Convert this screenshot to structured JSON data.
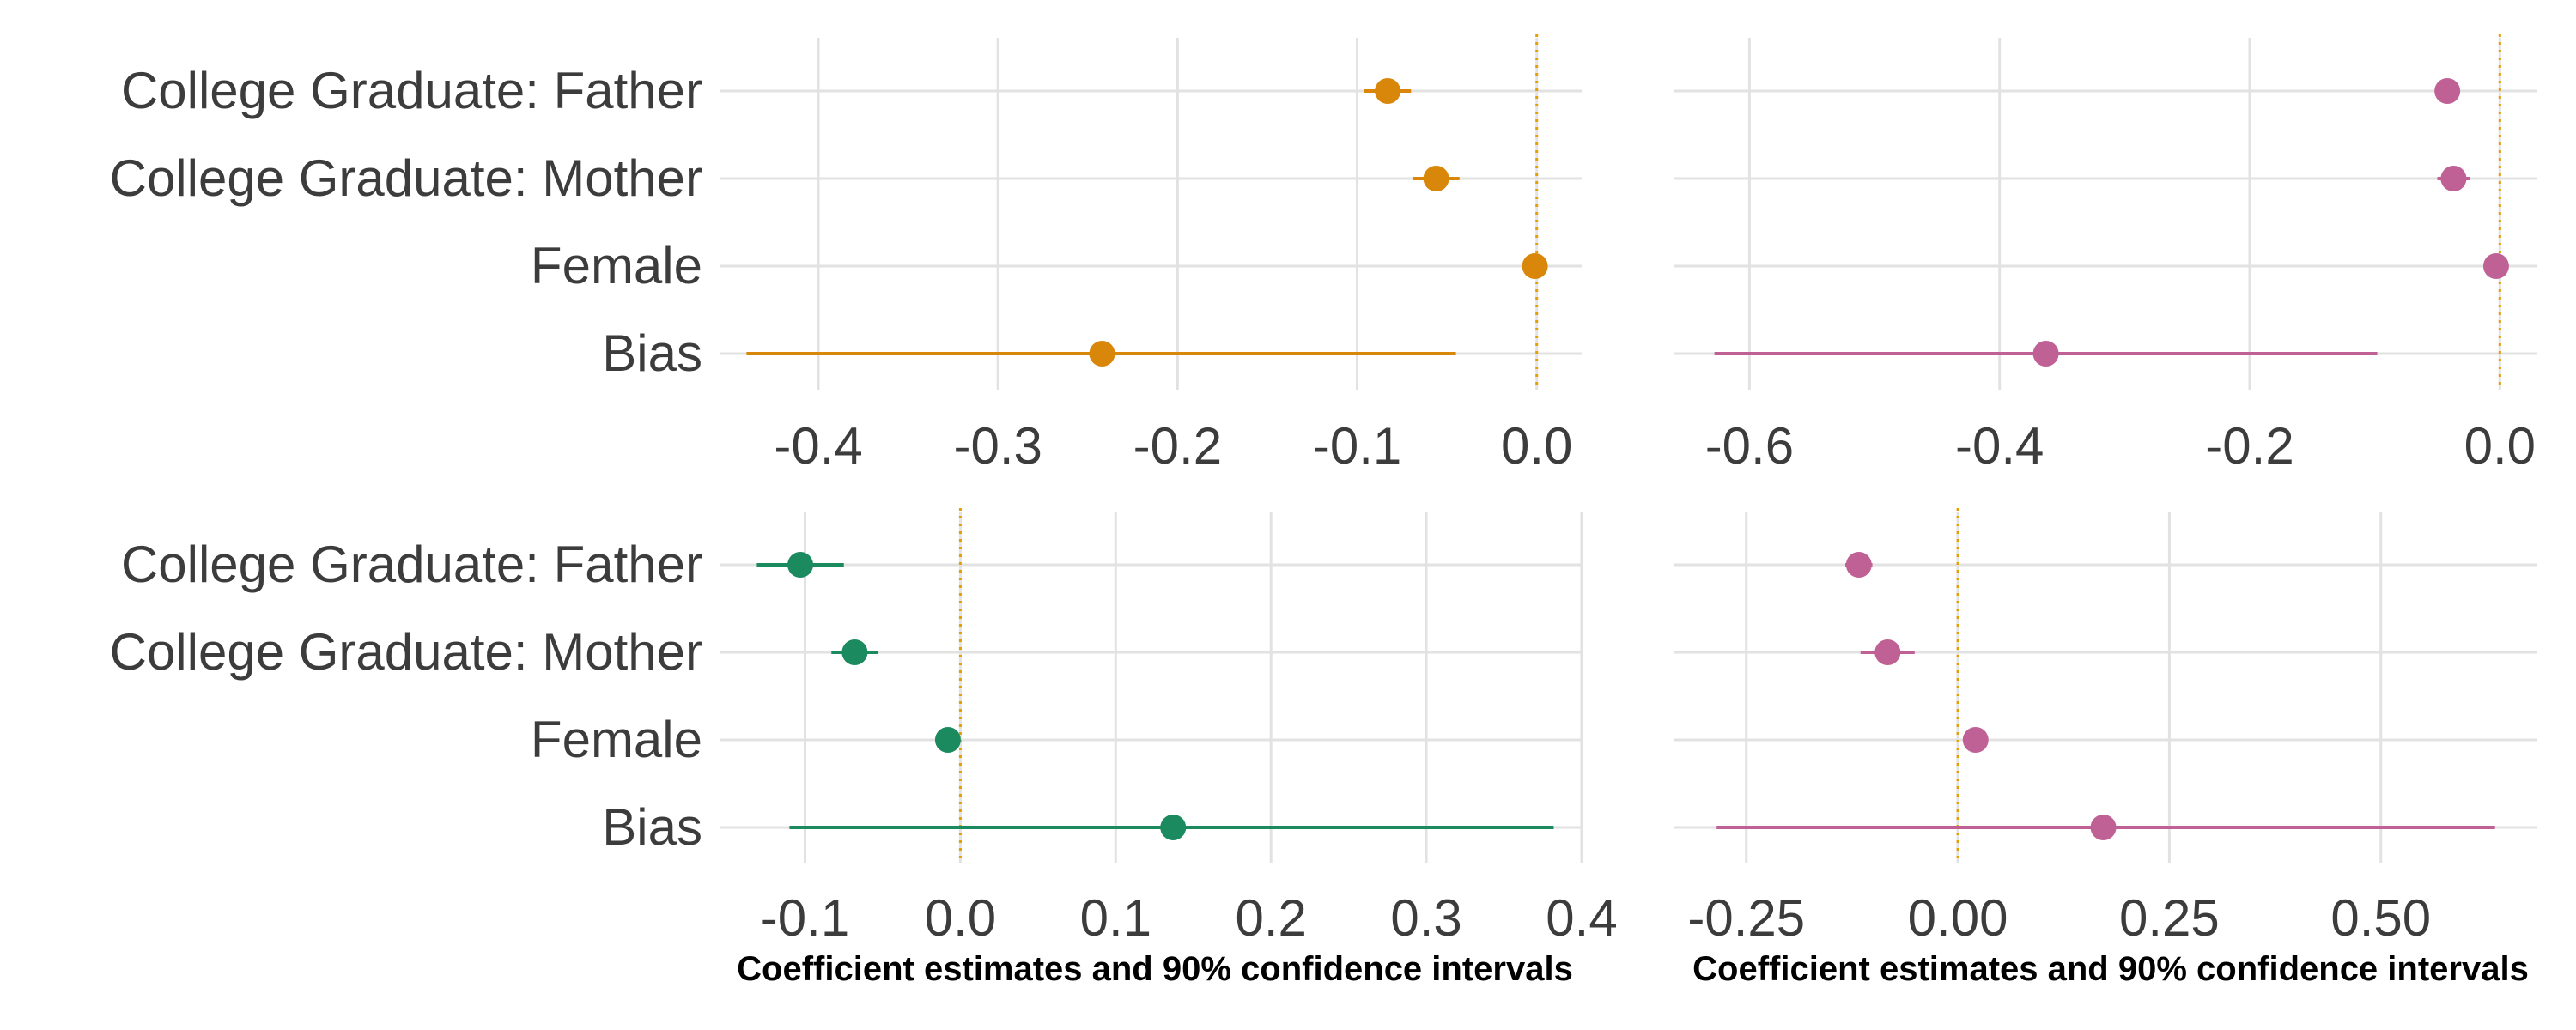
{
  "chart_data": [
    {
      "type": "forest",
      "panel": "top-left",
      "xlabel": "",
      "categories": [
        "College Graduate: Father",
        "College Graduate: Mother",
        "Female",
        "Bias"
      ],
      "estimates": [
        -0.083,
        -0.056,
        -0.001,
        -0.242
      ],
      "ci_low": [
        -0.096,
        -0.069,
        -0.003,
        -0.44
      ],
      "ci_high": [
        -0.07,
        -0.043,
        0.001,
        -0.045
      ],
      "xlim": [
        -0.455,
        0.025
      ],
      "xticks": [
        -0.4,
        -0.3,
        -0.2,
        -0.1,
        0.0
      ],
      "xtick_labels": [
        "-0.4",
        "-0.3",
        "-0.2",
        "-0.1",
        "0.0"
      ],
      "reference_line": 0.0,
      "color": "#d9870b",
      "grid": true
    },
    {
      "type": "forest",
      "panel": "top-right",
      "xlabel": "",
      "categories": [
        "College Graduate: Father",
        "College Graduate: Mother",
        "Female",
        "Bias"
      ],
      "estimates": [
        -0.042,
        -0.037,
        -0.003,
        -0.363
      ],
      "ci_low": [
        -0.052,
        -0.05,
        -0.006,
        -0.628
      ],
      "ci_high": [
        -0.032,
        -0.024,
        0.0,
        -0.098
      ],
      "xlim": [
        -0.66,
        0.03
      ],
      "xticks": [
        -0.6,
        -0.4,
        -0.2,
        0.0
      ],
      "xtick_labels": [
        "-0.6",
        "-0.4",
        "-0.2",
        "0.0"
      ],
      "reference_line": 0.0,
      "color": "#c06196",
      "grid": true
    },
    {
      "type": "forest",
      "panel": "bottom-left",
      "xlabel": "Coefficient estimates and 90% confidence intervals",
      "categories": [
        "College Graduate: Father",
        "College Graduate: Mother",
        "Female",
        "Bias"
      ],
      "estimates": [
        -0.103,
        -0.068,
        -0.008,
        0.137
      ],
      "ci_low": [
        -0.131,
        -0.083,
        -0.014,
        -0.11
      ],
      "ci_high": [
        -0.075,
        -0.053,
        -0.002,
        0.382
      ],
      "xlim": [
        -0.155,
        0.4
      ],
      "xticks": [
        -0.1,
        0.0,
        0.1,
        0.2,
        0.3,
        0.4
      ],
      "xtick_labels": [
        "-0.1",
        "0.0",
        "0.1",
        "0.2",
        "0.3",
        "0.4"
      ],
      "reference_line": 0.0,
      "color": "#1b8a5e",
      "grid": true
    },
    {
      "type": "forest",
      "panel": "bottom-right",
      "xlabel": "Coefficient estimates and 90% confidence intervals",
      "categories": [
        "College Graduate: Father",
        "College Graduate: Mother",
        "Female",
        "Bias"
      ],
      "estimates": [
        -0.117,
        -0.083,
        0.021,
        0.172
      ],
      "ci_low": [
        -0.133,
        -0.115,
        0.015,
        -0.285
      ],
      "ci_high": [
        -0.101,
        -0.051,
        0.027,
        0.635
      ],
      "xlim": [
        -0.335,
        0.685
      ],
      "xticks": [
        -0.25,
        0.0,
        0.25,
        0.5
      ],
      "xtick_labels": [
        "-0.25",
        "0.00",
        "0.25",
        "0.50"
      ],
      "reference_line": 0.0,
      "color": "#c06196",
      "grid": true
    }
  ],
  "colors": {
    "reference_line": "#e69f00",
    "grid": "#e2e2e2",
    "tick_text": "#3c3c3c"
  }
}
